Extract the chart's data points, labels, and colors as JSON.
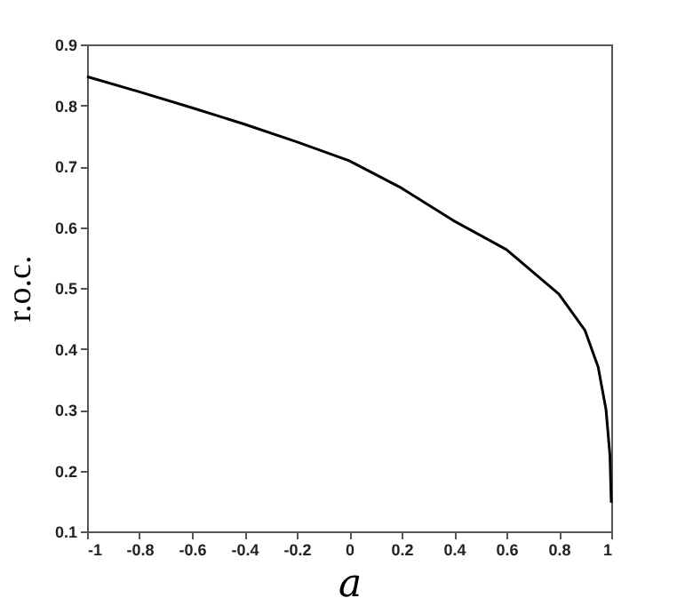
{
  "chart_data": {
    "type": "line",
    "xlabel": "a",
    "ylabel": "r.o.c.",
    "x": [
      -1,
      -0.8,
      -0.6,
      -0.4,
      -0.2,
      0,
      0.2,
      0.4,
      0.6,
      0.8,
      0.9,
      0.95,
      0.98,
      0.995,
      1
    ],
    "series": [
      {
        "color": "#000000",
        "values": [
          0.847,
          0.822,
          0.796,
          0.769,
          0.74,
          0.709,
          0.664,
          0.61,
          0.563,
          0.49,
          0.43,
          0.37,
          0.3,
          0.225,
          0.147
        ]
      }
    ],
    "xlim": [
      -1,
      1
    ],
    "xticks": [
      -1,
      -0.8,
      -0.6,
      -0.4,
      -0.2,
      0,
      0.2,
      0.4,
      0.6,
      0.8,
      1
    ],
    "ylim": [
      0.1,
      0.9
    ],
    "yticks": [
      0.1,
      0.2,
      0.3,
      0.4,
      0.5,
      0.6,
      0.7,
      0.8,
      0.9
    ],
    "grid": false,
    "marker": "none",
    "line_style": "solid"
  }
}
